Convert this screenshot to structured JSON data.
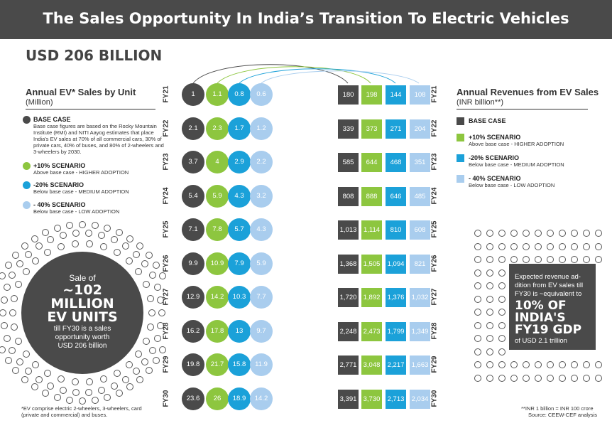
{
  "title": "The Sales Opportunity In India’s Transition To Electric Vehicles",
  "headline": "USD 206 BILLION",
  "colors": {
    "base": "#4a4a4a",
    "plus10": "#8dc63f",
    "minus20": "#1ba1d9",
    "minus40": "#a9cdee",
    "banner": "#4a4a4a"
  },
  "units_section": {
    "title": "Annual EV* Sales by Unit",
    "subtitle": "(Million)"
  },
  "revenue_section": {
    "title": "Annual Revenues from EV Sales",
    "subtitle": "(INR billion**)"
  },
  "legend": {
    "base": {
      "title": "BASE CASE",
      "note": "Base case figures are based on the Rocky Mountain Institute (RMI) and NITI Aayog estimates that place India's EV sales at 70% of all commercial cars, 30% of private cars, 40% of buses, and 80% of 2-wheelers and 3-wheelers by 2030."
    },
    "plus10": {
      "title": "+10% SCENARIO",
      "sub": "Above base case - HIGHER ADOPTION"
    },
    "minus20": {
      "title": "-20% SCENARIO",
      "sub": "Below base case - MEDIUM ADOPTION"
    },
    "minus40": {
      "title": "- 40% SCENARIO",
      "sub": "Below base case - LOW ADOPTION"
    },
    "rev_base": {
      "title": "BASE CASE"
    },
    "rev_plus10": {
      "title": "+10% SCENARIO",
      "sub": "Above base case - HIGHER ADOPTION"
    },
    "rev_minus20": {
      "title": "-20% SCENARIO",
      "sub": "Below base case - MEDIUM ADOPTION"
    },
    "rev_minus40": {
      "title": "- 40% SCENARIO",
      "sub": "Below base case - LOW ADOPTION"
    }
  },
  "callout_left": {
    "l1": "Sale of",
    "l2": "~102",
    "l3": "MILLION",
    "l4": "EV UNITS",
    "l5": "till FY30 is a sales",
    "l6": "opportunity worth",
    "l7": "USD 206 billion"
  },
  "callout_right": {
    "l1": "Expected revenue ad-",
    "l2": "dition from EV sales till",
    "l3": "FY30 is ~equivalent to",
    "l4": "10% OF",
    "l5": "INDIA'S",
    "l6": "FY19 GDP",
    "l7": "of USD 2.1 trillion"
  },
  "footnotes": {
    "ev": "*EV comprise electric 2-wheelers, 3-wheelers, card",
    "ev2": "(private and commercial) and buses.",
    "inr": "**INR 1 billion = INR 100 crore",
    "source": "Source: CEEW-CEF analysis"
  },
  "chart_data": [
    {
      "type": "table",
      "title": "Annual EV* Sales by Unit",
      "subtitle": "(Million)",
      "categories": [
        "FY21",
        "FY22",
        "FY23",
        "FY24",
        "FY25",
        "FY26",
        "FY27",
        "FY28",
        "FY29",
        "FY30"
      ],
      "series": [
        {
          "name": "BASE CASE",
          "values": [
            "1",
            "2.1",
            "3.7",
            "5.4",
            "7.1",
            "9.9",
            "12.9",
            "16.2",
            "19.8",
            "23.6"
          ]
        },
        {
          "name": "+10% SCENARIO",
          "values": [
            "1.1",
            "2.3",
            "4",
            "5.9",
            "7.8",
            "10.9",
            "14.2",
            "17.8",
            "21.7",
            "26"
          ]
        },
        {
          "name": "-20% SCENARIO",
          "values": [
            "0.8",
            "1.7",
            "2.9",
            "4.3",
            "5.7",
            "7.9",
            "10.3",
            "13",
            "15.8",
            "18.9"
          ]
        },
        {
          "name": "- 40% SCENARIO",
          "values": [
            "0.6",
            "1.2",
            "2.2",
            "3.2",
            "4.3",
            "5.9",
            "7.7",
            "9.7",
            "11.9",
            "14.2"
          ]
        }
      ]
    },
    {
      "type": "table",
      "title": "Annual Revenues from EV Sales",
      "subtitle": "(INR billion**)",
      "categories": [
        "FY21",
        "FY22",
        "FY23",
        "FY24",
        "FY25",
        "FY26",
        "FY27",
        "FY28",
        "FY29",
        "FY30"
      ],
      "series": [
        {
          "name": "BASE CASE",
          "values": [
            "180",
            "339",
            "585",
            "808",
            "1,013",
            "1,368",
            "1,720",
            "2,248",
            "2,771",
            "3,391"
          ]
        },
        {
          "name": "+10% SCENARIO",
          "values": [
            "198",
            "373",
            "644",
            "888",
            "1,114",
            "1,505",
            "1,892",
            "2,473",
            "3,048",
            "3,730"
          ]
        },
        {
          "name": "-20% SCENARIO",
          "values": [
            "144",
            "271",
            "468",
            "646",
            "810",
            "1,094",
            "1,376",
            "1,799",
            "2,217",
            "2,713"
          ]
        },
        {
          "name": "- 40% SCENARIO",
          "values": [
            "108",
            "204",
            "351",
            "485",
            "608",
            "821",
            "1,032",
            "1,349",
            "1,663",
            "2,034"
          ]
        }
      ]
    }
  ]
}
